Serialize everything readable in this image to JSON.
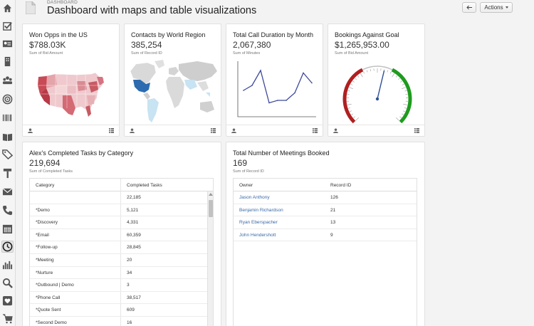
{
  "header": {
    "breadcrumb": "DASHBOARD",
    "title": "Dashboard with maps and table visualizations",
    "actions_label": "Actions"
  },
  "sidebar": {
    "items": [
      {
        "icon": "home-icon"
      },
      {
        "icon": "checkbox-icon"
      },
      {
        "icon": "contact-card-icon"
      },
      {
        "icon": "building-icon"
      },
      {
        "icon": "people-icon"
      },
      {
        "icon": "target-icon"
      },
      {
        "icon": "barcode-icon"
      },
      {
        "icon": "book-icon"
      },
      {
        "icon": "tag-icon"
      },
      {
        "icon": "hammer-icon"
      },
      {
        "icon": "envelope-icon"
      },
      {
        "icon": "phone-icon"
      },
      {
        "icon": "calendar-icon"
      },
      {
        "icon": "clock-icon"
      },
      {
        "icon": "bar-chart-icon"
      },
      {
        "icon": "magnifier-icon"
      },
      {
        "icon": "heart-icon"
      },
      {
        "icon": "cart-icon"
      }
    ],
    "active_index": 13
  },
  "cards": {
    "won_opps": {
      "title": "Won Opps in the US",
      "value": "$788.03K",
      "sub": "Sum of Bid Amount"
    },
    "contacts": {
      "title": "Contacts by World Region",
      "value": "385,254",
      "sub": "Sum of Record ID"
    },
    "call_duration": {
      "title": "Total Call Duration by Month",
      "value": "2,067,380",
      "sub": "Sum of Minutes"
    },
    "bookings": {
      "title": "Bookings Against Goal",
      "value": "$1,265,953.00",
      "sub": "Sum of Bid Amount"
    },
    "tasks": {
      "title": "Alex's Completed Tasks by Category",
      "value": "219,694",
      "sub": "Sum of Completed Tasks"
    },
    "meetings": {
      "title": "Total Number of Meetings Booked",
      "value": "169",
      "sub": "Sum of Record ID"
    }
  },
  "tasks_table": {
    "columns": [
      "Category",
      "Completed Tasks"
    ],
    "rows": [
      {
        "category": "",
        "value": "22,185"
      },
      {
        "category": "*Demo",
        "value": "5,121"
      },
      {
        "category": "*Discovery",
        "value": "4,331"
      },
      {
        "category": "*Email",
        "value": "60,359"
      },
      {
        "category": "*Follow-up",
        "value": "28,845"
      },
      {
        "category": "*Meeting",
        "value": "20"
      },
      {
        "category": "*Nurture",
        "value": "34"
      },
      {
        "category": "*Outbound | Demo",
        "value": "3"
      },
      {
        "category": "*Phone Call",
        "value": "38,517"
      },
      {
        "category": "*Quote Sent",
        "value": "609"
      },
      {
        "category": "*Second Demo",
        "value": "16"
      }
    ]
  },
  "meetings_table": {
    "columns": [
      "Owner",
      "Record ID"
    ],
    "rows": [
      {
        "owner": "Jason Anthony",
        "value": "126"
      },
      {
        "owner": "Benjamin Richardson",
        "value": "21"
      },
      {
        "owner": "Ryan Eberspacher",
        "value": "13"
      },
      {
        "owner": "John Hendershott",
        "value": "9"
      }
    ]
  },
  "chart_data": [
    {
      "type": "line",
      "title": "Total Call Duration by Month",
      "x": [
        1,
        2,
        3,
        4,
        5,
        6,
        7,
        8,
        9
      ],
      "series": [
        {
          "values": [
            0.5,
            0.6,
            0.9,
            0.25,
            0.3,
            0.3,
            0.45,
            0.85,
            0.65
          ]
        }
      ],
      "ylim": [
        0,
        1
      ],
      "grid": false
    },
    {
      "type": "gauge",
      "title": "Bookings Against Goal",
      "value_fraction": 0.55,
      "bands": [
        {
          "from": 0.0,
          "to": 0.4,
          "color": "#b01f1f"
        },
        {
          "from": 0.4,
          "to": 0.6,
          "color": "#bfbfbf"
        },
        {
          "from": 0.6,
          "to": 1.0,
          "color": "#1e9b1e"
        }
      ]
    }
  ],
  "colors": {
    "accent": "#3a6aa8",
    "line": "#3d4a9a",
    "us_map": "#e0a0a8",
    "world_map": "#2c6aaa"
  }
}
